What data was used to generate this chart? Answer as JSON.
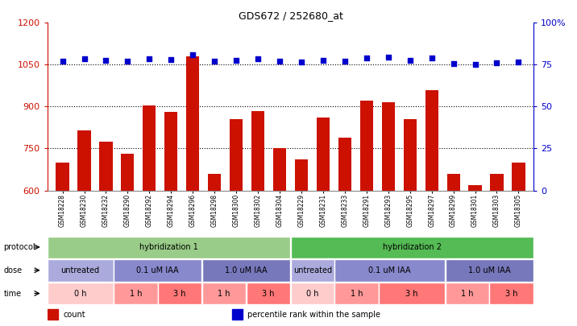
{
  "title": "GDS672 / 252680_at",
  "samples": [
    "GSM18228",
    "GSM18230",
    "GSM18232",
    "GSM18290",
    "GSM18292",
    "GSM18294",
    "GSM18296",
    "GSM18298",
    "GSM18300",
    "GSM18302",
    "GSM18304",
    "GSM18229",
    "GSM18231",
    "GSM18233",
    "GSM18291",
    "GSM18293",
    "GSM18295",
    "GSM18297",
    "GSM18299",
    "GSM18301",
    "GSM18303",
    "GSM18305"
  ],
  "counts": [
    700,
    815,
    775,
    730,
    905,
    880,
    1080,
    660,
    855,
    885,
    750,
    710,
    860,
    790,
    920,
    915,
    855,
    960,
    660,
    620,
    660,
    700
  ],
  "percentiles_left_axis": [
    1063,
    1070,
    1065,
    1063,
    1072,
    1067,
    1085,
    1063,
    1066,
    1070,
    1063,
    1060,
    1066,
    1063,
    1073,
    1077,
    1066,
    1073,
    1055,
    1052,
    1057,
    1060
  ],
  "ylim_left": [
    600,
    1200
  ],
  "ylim_right": [
    0,
    100
  ],
  "yticks_left": [
    600,
    750,
    900,
    1050,
    1200
  ],
  "yticks_right": [
    0,
    25,
    50,
    75,
    100
  ],
  "bar_color": "#CC1100",
  "dot_color": "#0000CC",
  "bg_color": "#FFFFFF",
  "protocol_groups": [
    {
      "text": "hybridization 1",
      "start": 0,
      "end": 11,
      "color": "#99CC88"
    },
    {
      "text": "hybridization 2",
      "start": 11,
      "end": 22,
      "color": "#55BB55"
    }
  ],
  "dose_groups": [
    {
      "text": "untreated",
      "start": 0,
      "end": 3,
      "color": "#AAAADD"
    },
    {
      "text": "0.1 uM IAA",
      "start": 3,
      "end": 7,
      "color": "#8888CC"
    },
    {
      "text": "1.0 uM IAA",
      "start": 7,
      "end": 11,
      "color": "#7777BB"
    },
    {
      "text": "untreated",
      "start": 11,
      "end": 13,
      "color": "#AAAADD"
    },
    {
      "text": "0.1 uM IAA",
      "start": 13,
      "end": 18,
      "color": "#8888CC"
    },
    {
      "text": "1.0 uM IAA",
      "start": 18,
      "end": 22,
      "color": "#7777BB"
    }
  ],
  "time_groups": [
    {
      "text": "0 h",
      "start": 0,
      "end": 3,
      "color": "#FFCCCC"
    },
    {
      "text": "1 h",
      "start": 3,
      "end": 5,
      "color": "#FF9999"
    },
    {
      "text": "3 h",
      "start": 5,
      "end": 7,
      "color": "#FF7777"
    },
    {
      "text": "1 h",
      "start": 7,
      "end": 9,
      "color": "#FF9999"
    },
    {
      "text": "3 h",
      "start": 9,
      "end": 11,
      "color": "#FF7777"
    },
    {
      "text": "0 h",
      "start": 11,
      "end": 13,
      "color": "#FFCCCC"
    },
    {
      "text": "1 h",
      "start": 13,
      "end": 15,
      "color": "#FF9999"
    },
    {
      "text": "3 h",
      "start": 15,
      "end": 18,
      "color": "#FF7777"
    },
    {
      "text": "1 h",
      "start": 18,
      "end": 20,
      "color": "#FF9999"
    },
    {
      "text": "3 h",
      "start": 20,
      "end": 22,
      "color": "#FF7777"
    }
  ],
  "legend": [
    {
      "color": "#CC1100",
      "label": "count"
    },
    {
      "color": "#0000CC",
      "label": "percentile rank within the sample"
    }
  ]
}
